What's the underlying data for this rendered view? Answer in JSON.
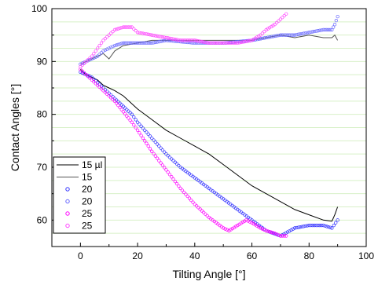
{
  "chart_data": {
    "type": "scatter",
    "xlabel": "Tilting Angle [°]",
    "ylabel": "Contact Angles [°]",
    "xlim": [
      -10,
      100
    ],
    "ylim": [
      55,
      100
    ],
    "xticks": [
      "0",
      "20",
      "40",
      "60",
      "80",
      "100"
    ],
    "xtick_values": [
      0,
      20,
      40,
      60,
      80,
      100
    ],
    "yticks": [
      "60",
      "70",
      "80",
      "90",
      "100"
    ],
    "ytick_values": [
      60,
      70,
      80,
      90,
      100
    ],
    "grid": "horizontal minor gridlines (light green)",
    "legend_position": "bottom-left",
    "series": [
      {
        "name": "15 µl",
        "style": "line",
        "color": "#000000",
        "x": [
          0,
          2,
          4,
          6,
          8,
          10,
          12,
          15,
          20,
          25,
          30,
          35,
          40,
          45,
          50,
          55,
          60,
          65,
          70,
          75,
          80,
          85,
          88,
          89,
          90
        ],
        "y": [
          88.5,
          87.5,
          87,
          86.5,
          85.5,
          85,
          84.5,
          83.5,
          81,
          79,
          77,
          75.5,
          74,
          72.5,
          70.5,
          68.5,
          66.5,
          65,
          63.5,
          62,
          61,
          60,
          59.8,
          61,
          62.5
        ]
      },
      {
        "name": "15",
        "style": "line",
        "color": "#555555",
        "x": [
          0,
          2,
          4,
          6,
          8,
          10,
          12,
          15,
          20,
          25,
          30,
          40,
          50,
          60,
          65,
          70,
          75,
          80,
          85,
          88,
          89,
          90
        ],
        "y": [
          89.5,
          90,
          90.5,
          91,
          91.5,
          90.5,
          92,
          93,
          93.5,
          94,
          94,
          94,
          94,
          94,
          94.5,
          95,
          94.5,
          95,
          94.5,
          94.5,
          95,
          94
        ]
      },
      {
        "name": "20",
        "style": "circle",
        "color": "#3333ff",
        "x": [
          0,
          2,
          4,
          6,
          8,
          10,
          12,
          15,
          18,
          20,
          25,
          30,
          35,
          40,
          45,
          50,
          55,
          60,
          65,
          70,
          75,
          80,
          85,
          88,
          90
        ],
        "y": [
          88,
          87.5,
          87,
          86,
          85,
          84,
          83,
          81.5,
          80,
          78.5,
          75.5,
          72.5,
          70,
          68,
          66,
          64,
          62,
          60,
          58,
          57,
          58.5,
          59,
          59,
          58.5,
          60
        ]
      },
      {
        "name": "20",
        "style": "circle",
        "color": "#6666ff",
        "x": [
          0,
          2,
          4,
          6,
          8,
          10,
          12,
          15,
          20,
          25,
          30,
          40,
          50,
          60,
          65,
          70,
          75,
          80,
          85,
          88,
          89,
          90
        ],
        "y": [
          89.5,
          90,
          90.5,
          91,
          92,
          92.5,
          93,
          93.5,
          93.5,
          93.5,
          94,
          93.5,
          93.5,
          94,
          94.5,
          95,
          95,
          95.5,
          96,
          96,
          97,
          98.5
        ]
      },
      {
        "name": "25",
        "style": "circle",
        "color": "#ff00ff",
        "x": [
          0,
          2,
          4,
          6,
          8,
          10,
          12,
          15,
          18,
          20,
          25,
          30,
          35,
          40,
          45,
          50,
          52,
          55,
          58,
          60,
          63,
          65,
          68,
          70,
          72
        ],
        "y": [
          88.5,
          87.5,
          86.5,
          85.5,
          84.5,
          83.5,
          82.5,
          80.5,
          78.5,
          77,
          73,
          69.5,
          66,
          63,
          60.5,
          58.5,
          58,
          59,
          60,
          59.5,
          58.5,
          58,
          57.5,
          57,
          57
        ]
      },
      {
        "name": "25",
        "style": "circle",
        "color": "#ff44ff",
        "x": [
          0,
          2,
          4,
          6,
          8,
          10,
          12,
          15,
          18,
          20,
          25,
          30,
          35,
          40,
          45,
          50,
          55,
          60,
          63,
          65,
          68,
          70,
          72
        ],
        "y": [
          89,
          90,
          91,
          92.5,
          94,
          95,
          96,
          96.5,
          96.5,
          95.5,
          95,
          94.5,
          94,
          94,
          93.5,
          93.5,
          93.5,
          94,
          95,
          96,
          97,
          98,
          99
        ]
      }
    ]
  }
}
